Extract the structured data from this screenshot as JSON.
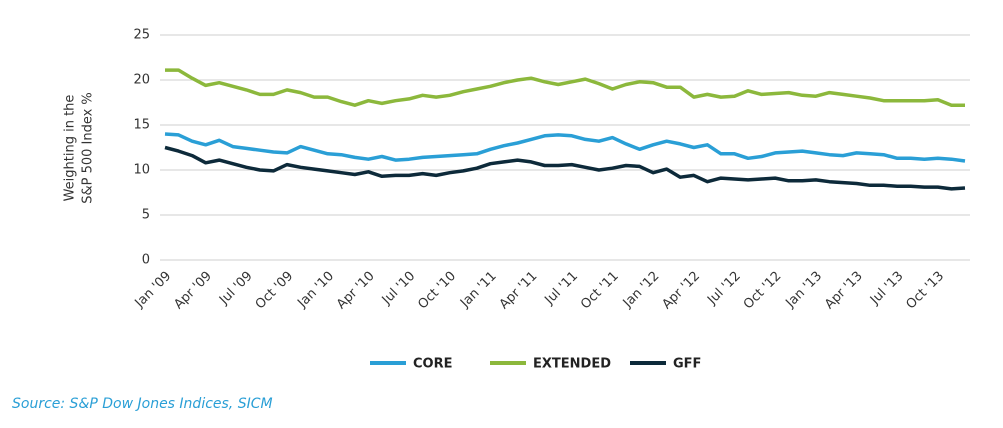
{
  "chart_data": {
    "type": "line",
    "ylabel": [
      "Weighting in the",
      "S&P 500 Index %"
    ],
    "source": "Source: S&P Dow Jones Indices, SICM",
    "categories": [
      "Jan '09",
      null,
      null,
      "Apr '09",
      null,
      null,
      "Jul '09",
      null,
      null,
      "Oct '09",
      null,
      null,
      "Jan '10",
      null,
      null,
      "Apr '10",
      null,
      null,
      "Jul '10",
      null,
      null,
      "Oct '10",
      null,
      null,
      "Jan '11",
      null,
      null,
      "Apr '11",
      null,
      null,
      "Jul '11",
      null,
      null,
      "Oct '11",
      null,
      null,
      "Jan '12",
      null,
      null,
      "Apr '12",
      null,
      null,
      "Jul '12",
      null,
      null,
      "Oct '12",
      null,
      null,
      "Jan '13",
      null,
      null,
      "Apr '13",
      null,
      null,
      "Jul '13",
      null,
      null,
      "Oct '13",
      null,
      null
    ],
    "series": [
      {
        "name": "CORE",
        "color": "#2a9fd6",
        "values": [
          14.0,
          13.9,
          13.2,
          12.8,
          13.3,
          12.6,
          12.4,
          12.2,
          12.0,
          11.9,
          12.6,
          12.2,
          11.8,
          11.7,
          11.4,
          11.2,
          11.5,
          11.1,
          11.2,
          11.4,
          11.5,
          11.6,
          11.7,
          11.8,
          12.3,
          12.7,
          13.0,
          13.4,
          13.8,
          13.9,
          13.8,
          13.4,
          13.2,
          13.6,
          12.9,
          12.3,
          12.8,
          13.2,
          12.9,
          12.5,
          12.8,
          11.8,
          11.8,
          11.3,
          11.5,
          11.9,
          12.0,
          12.1,
          11.9,
          11.7,
          11.6,
          11.9,
          11.8,
          11.7,
          11.3,
          11.3,
          11.2,
          11.3,
          11.2,
          11.0
        ]
      },
      {
        "name": "EXTENDED",
        "color": "#8cb83c",
        "values": [
          21.1,
          21.1,
          20.2,
          19.4,
          19.7,
          19.3,
          18.9,
          18.4,
          18.4,
          18.9,
          18.6,
          18.1,
          18.1,
          17.6,
          17.2,
          17.7,
          17.4,
          17.7,
          17.9,
          18.3,
          18.1,
          18.3,
          18.7,
          19.0,
          19.3,
          19.7,
          20.0,
          20.2,
          19.8,
          19.5,
          19.8,
          20.1,
          19.6,
          19.0,
          19.5,
          19.8,
          19.7,
          19.2,
          19.2,
          18.1,
          18.4,
          18.1,
          18.2,
          18.8,
          18.4,
          18.5,
          18.6,
          18.3,
          18.2,
          18.6,
          18.4,
          18.2,
          18.0,
          17.7,
          17.7,
          17.7,
          17.7,
          17.8,
          17.2,
          17.2
        ]
      },
      {
        "name": "GFF",
        "color": "#0d2a3a",
        "values": [
          12.5,
          12.1,
          11.6,
          10.8,
          11.1,
          10.7,
          10.3,
          10.0,
          9.9,
          10.6,
          10.3,
          10.1,
          9.9,
          9.7,
          9.5,
          9.8,
          9.3,
          9.4,
          9.4,
          9.6,
          9.4,
          9.7,
          9.9,
          10.2,
          10.7,
          10.9,
          11.1,
          10.9,
          10.5,
          10.5,
          10.6,
          10.3,
          10.0,
          10.2,
          10.5,
          10.4,
          9.7,
          10.1,
          9.2,
          9.4,
          8.7,
          9.1,
          9.0,
          8.9,
          9.0,
          9.1,
          8.8,
          8.8,
          8.9,
          8.7,
          8.6,
          8.5,
          8.3,
          8.3,
          8.2,
          8.2,
          8.1,
          8.1,
          7.9,
          8.0
        ]
      }
    ],
    "ylim": [
      0,
      25
    ],
    "yticks": [
      0,
      5,
      10,
      15,
      20,
      25
    ],
    "grid": true,
    "legend": "bottom"
  }
}
